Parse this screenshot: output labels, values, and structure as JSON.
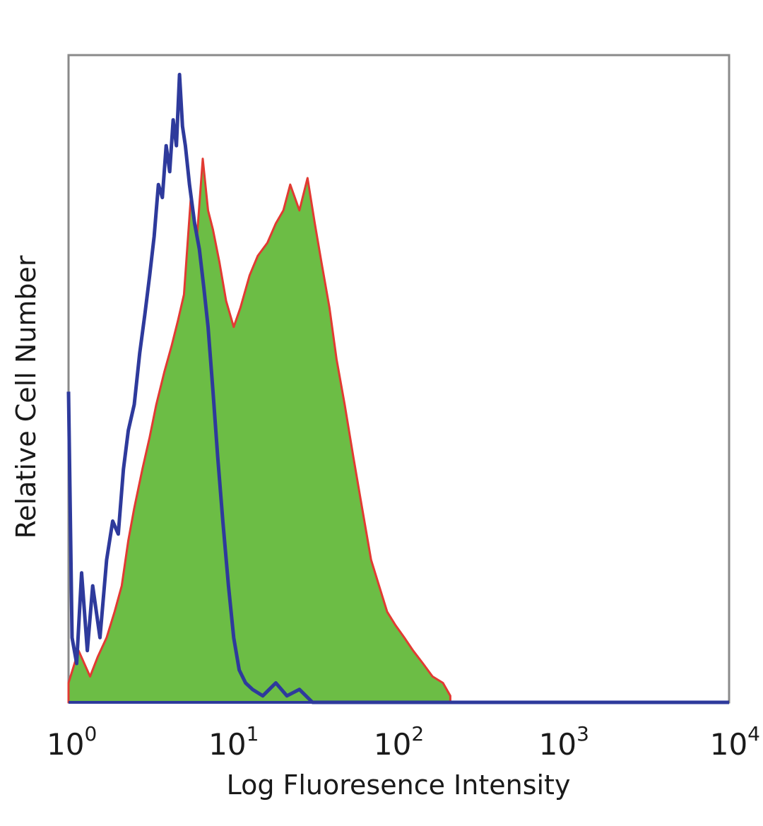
{
  "chart_data": {
    "type": "area",
    "title": "",
    "xlabel": "Log Fluoresence Intensity",
    "ylabel": "Relative Cell Number",
    "x_scale": "log",
    "xlim": [
      1,
      10000
    ],
    "ylim": [
      0,
      100
    ],
    "grid": false,
    "legend": "none",
    "x_ticks": [
      {
        "base": "10",
        "exp": "0",
        "value": 1
      },
      {
        "base": "10",
        "exp": "1",
        "value": 10
      },
      {
        "base": "10",
        "exp": "2",
        "value": 100
      },
      {
        "base": "10",
        "exp": "3",
        "value": 1000
      },
      {
        "base": "10",
        "exp": "4",
        "value": 10000
      }
    ],
    "series": [
      {
        "style": "filled",
        "fill_color": "#6cbd45",
        "edge_color": "#e23a32",
        "points": [
          [
            1.0,
            3
          ],
          [
            1.15,
            8
          ],
          [
            1.35,
            4
          ],
          [
            1.5,
            7
          ],
          [
            1.7,
            10
          ],
          [
            1.9,
            14
          ],
          [
            2.1,
            18
          ],
          [
            2.3,
            25
          ],
          [
            2.5,
            30
          ],
          [
            2.8,
            36
          ],
          [
            3.1,
            41
          ],
          [
            3.4,
            46
          ],
          [
            3.8,
            51
          ],
          [
            4.2,
            55
          ],
          [
            4.6,
            59
          ],
          [
            5.0,
            63
          ],
          [
            5.5,
            78
          ],
          [
            6.0,
            72
          ],
          [
            6.5,
            84
          ],
          [
            7.0,
            76
          ],
          [
            7.5,
            73
          ],
          [
            8.2,
            68
          ],
          [
            9.0,
            62
          ],
          [
            10.0,
            58
          ],
          [
            11.0,
            61
          ],
          [
            12.5,
            66
          ],
          [
            14.0,
            69
          ],
          [
            16.0,
            71
          ],
          [
            18.0,
            74
          ],
          [
            20.0,
            76
          ],
          [
            22.0,
            80
          ],
          [
            25.0,
            76
          ],
          [
            28.0,
            81
          ],
          [
            31.0,
            74
          ],
          [
            34.0,
            68
          ],
          [
            38.0,
            61
          ],
          [
            42.0,
            53
          ],
          [
            47.0,
            46
          ],
          [
            53.0,
            38
          ],
          [
            60.0,
            30
          ],
          [
            68.0,
            22
          ],
          [
            76.0,
            18
          ],
          [
            85.0,
            14
          ],
          [
            95.0,
            12
          ],
          [
            108.0,
            10
          ],
          [
            122.0,
            8
          ],
          [
            140.0,
            6
          ],
          [
            160.0,
            4
          ],
          [
            185.0,
            3
          ],
          [
            205.0,
            1
          ]
        ]
      },
      {
        "style": "line",
        "line_color": "#2e3a9c",
        "points": [
          [
            1.0,
            48
          ],
          [
            1.05,
            10
          ],
          [
            1.12,
            6
          ],
          [
            1.2,
            20
          ],
          [
            1.3,
            8
          ],
          [
            1.4,
            18
          ],
          [
            1.55,
            10
          ],
          [
            1.7,
            22
          ],
          [
            1.85,
            28
          ],
          [
            2.0,
            26
          ],
          [
            2.15,
            36
          ],
          [
            2.3,
            42
          ],
          [
            2.5,
            46
          ],
          [
            2.7,
            54
          ],
          [
            2.9,
            60
          ],
          [
            3.1,
            66
          ],
          [
            3.3,
            72
          ],
          [
            3.5,
            80
          ],
          [
            3.7,
            78
          ],
          [
            3.9,
            86
          ],
          [
            4.1,
            82
          ],
          [
            4.3,
            90
          ],
          [
            4.5,
            86
          ],
          [
            4.7,
            97
          ],
          [
            4.9,
            89
          ],
          [
            5.1,
            86
          ],
          [
            5.4,
            80
          ],
          [
            5.8,
            74
          ],
          [
            6.2,
            70
          ],
          [
            6.6,
            64
          ],
          [
            7.0,
            58
          ],
          [
            7.5,
            48
          ],
          [
            8.0,
            38
          ],
          [
            8.6,
            28
          ],
          [
            9.3,
            18
          ],
          [
            10.0,
            10
          ],
          [
            10.8,
            5
          ],
          [
            11.8,
            3
          ],
          [
            13.0,
            2
          ],
          [
            15.0,
            1
          ],
          [
            18.0,
            3
          ],
          [
            21.0,
            1
          ],
          [
            25.0,
            2
          ],
          [
            30.0,
            0
          ],
          [
            60.0,
            0
          ],
          [
            500.0,
            0
          ],
          [
            10000.0,
            0
          ]
        ]
      }
    ]
  }
}
